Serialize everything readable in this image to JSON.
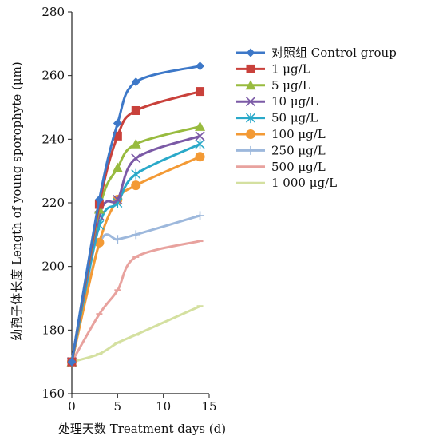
{
  "chart_data": {
    "type": "line",
    "xlabel": "处理天数 Treatment days (d)",
    "ylabel": "幼孢子体长度 Length of young sporophyte (μm)",
    "xlim": [
      0,
      15
    ],
    "ylim": [
      160,
      280
    ],
    "xticks": [
      "0",
      "5",
      "10",
      "15"
    ],
    "yticks": [
      "160",
      "180",
      "200",
      "220",
      "240",
      "260",
      "280"
    ],
    "x": [
      0,
      3,
      5,
      7,
      14
    ],
    "legend_position": "right",
    "grid": false,
    "series": [
      {
        "name": "对照组 Control group",
        "color": "#3d78c8",
        "marker": "diamond",
        "values": [
          170,
          221,
          245,
          258,
          263
        ]
      },
      {
        "name": "1 μg/L",
        "color": "#c9413b",
        "marker": "square",
        "values": [
          170,
          219.5,
          241,
          249,
          255
        ]
      },
      {
        "name": "5 μg/L",
        "color": "#98bb3f",
        "marker": "triangle",
        "values": [
          170,
          218,
          231,
          238.5,
          244
        ]
      },
      {
        "name": "10 μg/L",
        "color": "#7b5aa6",
        "marker": "x",
        "values": [
          170,
          216,
          221,
          234,
          241
        ]
      },
      {
        "name": "50 μg/L",
        "color": "#2aa9c9",
        "marker": "star",
        "values": [
          170,
          213,
          220,
          229,
          238.5
        ]
      },
      {
        "name": "100 μg/L",
        "color": "#f39a35",
        "marker": "circle",
        "values": [
          170,
          207.5,
          221,
          225.5,
          234.5
        ]
      },
      {
        "name": "250 μg/L",
        "color": "#9db8dc",
        "marker": "plus",
        "values": [
          170,
          207,
          208.5,
          210,
          216
        ]
      },
      {
        "name": "500 μg/L",
        "color": "#e8a29e",
        "marker": "dash",
        "values": [
          170,
          185,
          192.5,
          203,
          208
        ]
      },
      {
        "name": "1 000 μg/L",
        "color": "#d4e0a0",
        "marker": "dash",
        "values": [
          170,
          172.5,
          176,
          178.5,
          187.5
        ]
      }
    ]
  }
}
